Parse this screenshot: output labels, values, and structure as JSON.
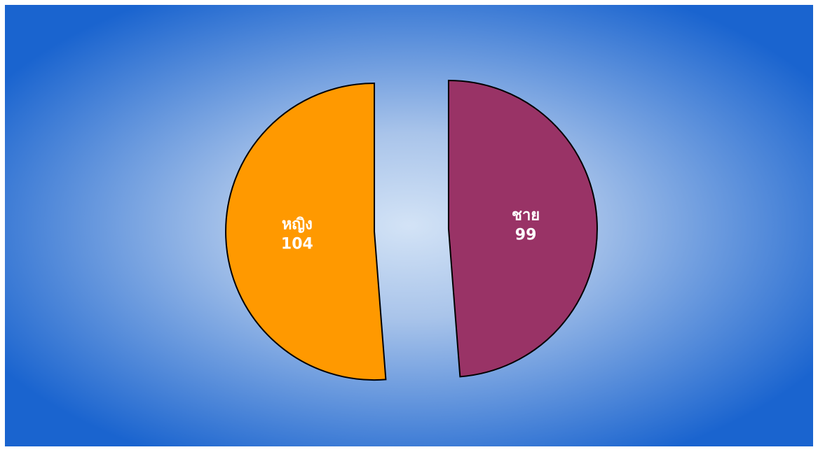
{
  "chart_data": {
    "type": "pie",
    "categories": [
      "ชาย",
      "หญิง"
    ],
    "values": [
      99,
      104
    ],
    "colors": [
      "#993366",
      "#ff9900"
    ]
  }
}
